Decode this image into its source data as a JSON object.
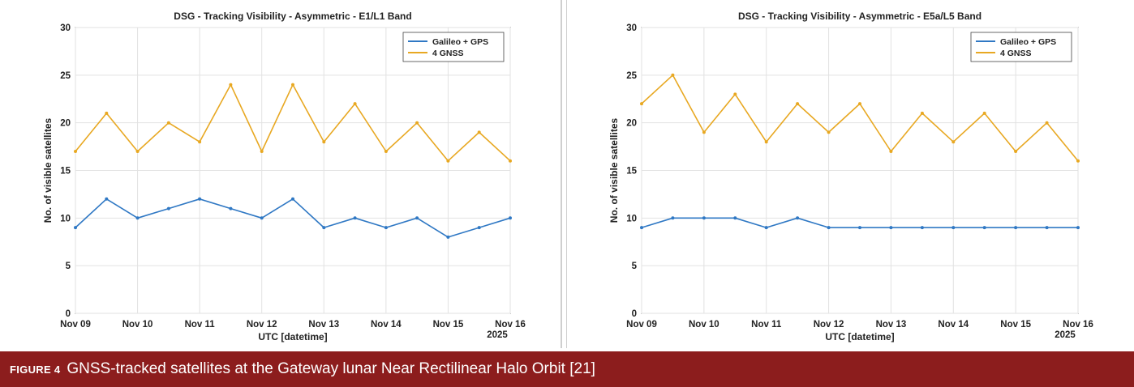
{
  "colors": {
    "series_galileo_gps": "#2f78c4",
    "series_4gnss": "#e8a822",
    "caption_bg": "#8c1d1d"
  },
  "caption": {
    "label": "FIGURE 4",
    "text": "GNSS-tracked satellites at the Gateway lunar Near Rectilinear Halo Orbit [21]"
  },
  "chart_data": [
    {
      "type": "line",
      "title": "DSG - Tracking Visibility - Asymmetric - E1/L1 Band",
      "xlabel": "UTC [datetime]",
      "ylabel": "No. of visible satellites",
      "x_ticks": [
        "Nov 09",
        "Nov 10",
        "Nov 11",
        "Nov 12",
        "Nov 13",
        "Nov 14",
        "Nov 15",
        "Nov 16"
      ],
      "x_year_label": "2025",
      "xlim": [
        "2025-11-09",
        "2025-11-16"
      ],
      "ylim": [
        0,
        30
      ],
      "y_ticks": [
        0,
        5,
        10,
        15,
        20,
        25,
        30
      ],
      "grid": true,
      "legend_position": "top-right",
      "x": [
        "2025-11-09",
        "2025-11-09 12:00",
        "2025-11-10",
        "2025-11-10 12:00",
        "2025-11-11",
        "2025-11-11 12:00",
        "2025-11-12",
        "2025-11-12 12:00",
        "2025-11-13",
        "2025-11-13 12:00",
        "2025-11-14",
        "2025-11-14 12:00",
        "2025-11-15",
        "2025-11-15 12:00",
        "2025-11-16"
      ],
      "series": [
        {
          "name": "Galileo + GPS",
          "color": "#2f78c4",
          "values": [
            9,
            12,
            10,
            11,
            12,
            11,
            10,
            12,
            9,
            10,
            9,
            10,
            8,
            9,
            10
          ]
        },
        {
          "name": "4 GNSS",
          "color": "#e8a822",
          "values": [
            17,
            21,
            17,
            20,
            18,
            24,
            17,
            24,
            18,
            22,
            17,
            20,
            16,
            19,
            16
          ]
        }
      ]
    },
    {
      "type": "line",
      "title": "DSG - Tracking Visibility - Asymmetric - E5a/L5 Band",
      "xlabel": "UTC [datetime]",
      "ylabel": "No. of visible satellites",
      "x_ticks": [
        "Nov 09",
        "Nov 10",
        "Nov 11",
        "Nov 12",
        "Nov 13",
        "Nov 14",
        "Nov 15",
        "Nov 16"
      ],
      "x_year_label": "2025",
      "xlim": [
        "2025-11-09",
        "2025-11-16"
      ],
      "ylim": [
        0,
        30
      ],
      "y_ticks": [
        0,
        5,
        10,
        15,
        20,
        25,
        30
      ],
      "grid": true,
      "legend_position": "top-right",
      "x": [
        "2025-11-09",
        "2025-11-09 12:00",
        "2025-11-10",
        "2025-11-10 12:00",
        "2025-11-11",
        "2025-11-11 12:00",
        "2025-11-12",
        "2025-11-12 12:00",
        "2025-11-13",
        "2025-11-13 12:00",
        "2025-11-14",
        "2025-11-14 12:00",
        "2025-11-15",
        "2025-11-15 12:00",
        "2025-11-16"
      ],
      "series": [
        {
          "name": "Galileo + GPS",
          "color": "#2f78c4",
          "values": [
            9,
            10,
            10,
            10,
            9,
            10,
            9,
            9,
            9,
            9,
            9,
            9,
            9,
            9,
            9
          ]
        },
        {
          "name": "4 GNSS",
          "color": "#e8a822",
          "values": [
            22,
            25,
            19,
            23,
            18,
            22,
            19,
            22,
            17,
            21,
            18,
            21,
            17,
            20,
            16
          ]
        }
      ]
    }
  ]
}
